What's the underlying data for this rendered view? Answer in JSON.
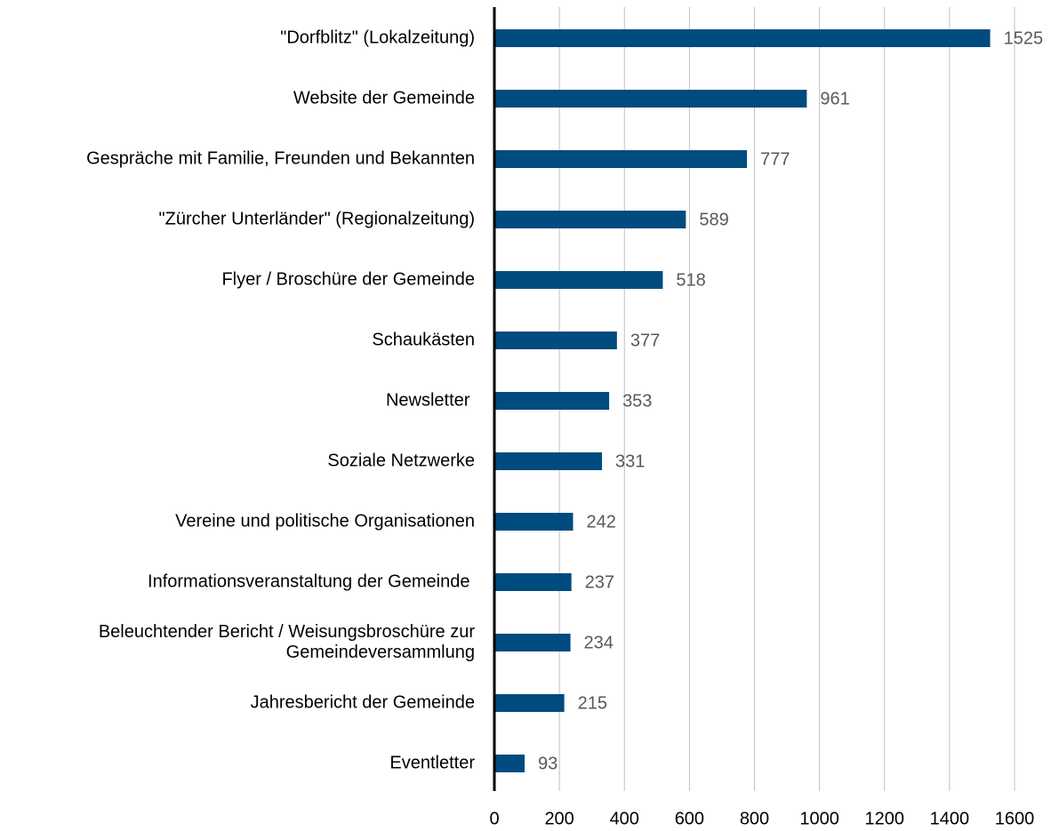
{
  "chart_data": {
    "type": "bar",
    "orientation": "horizontal",
    "categories": [
      "\"Dorfblitz\" (Lokalzeitung)",
      "Website der Gemeinde",
      "Gespräche mit Familie, Freunden und Bekannten",
      "\"Zürcher Unterländer\" (Regionalzeitung)",
      "Flyer / Broschüre der Gemeinde",
      "Schaukästen",
      "Newsletter ",
      "Soziale Netzwerke",
      "Vereine und politische Organisationen",
      "Informationsveranstaltung der Gemeinde ",
      "Beleuchtender Bericht / Weisungsbroschüre zur\nGemeindeversammlung",
      "Jahresbericht der Gemeinde",
      "Eventletter"
    ],
    "values": [
      1525,
      961,
      777,
      589,
      518,
      377,
      353,
      331,
      242,
      237,
      234,
      215,
      93
    ],
    "color": "#004b7f",
    "xlim": [
      0,
      1600
    ],
    "xticks": [
      0,
      200,
      400,
      600,
      800,
      1000,
      1200,
      1400,
      1600
    ],
    "grid": true
  }
}
